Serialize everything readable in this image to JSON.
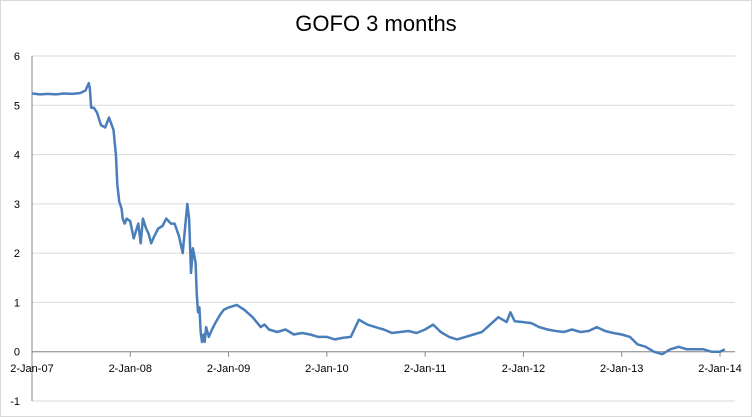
{
  "chart_data": {
    "type": "line",
    "title": "GOFO 3 months",
    "xlabel": "",
    "ylabel": "",
    "ylim": [
      -1,
      6
    ],
    "y_ticks": [
      "-1",
      "0",
      "1",
      "2",
      "3",
      "4",
      "5",
      "6"
    ],
    "x_ticks": [
      "2-Jan-07",
      "2-Jan-08",
      "2-Jan-09",
      "2-Jan-10",
      "2-Jan-11",
      "2-Jan-12",
      "2-Jan-13",
      "2-Jan-14"
    ],
    "grid": "horizontal",
    "legend": "none",
    "series_color": "#4a7ebb",
    "series": [
      {
        "x": [
          "2007-01-02",
          "2007-02-01",
          "2007-03-01",
          "2007-04-01",
          "2007-05-01",
          "2007-06-01",
          "2007-07-01",
          "2007-07-20",
          "2007-08-01",
          "2007-08-05",
          "2007-08-10",
          "2007-08-20",
          "2007-09-01",
          "2007-09-15",
          "2007-10-01",
          "2007-10-15",
          "2007-11-01",
          "2007-11-10",
          "2007-11-15",
          "2007-11-22",
          "2007-12-01",
          "2007-12-05",
          "2007-12-12",
          "2007-12-20",
          "2008-01-02",
          "2008-01-15",
          "2008-02-01",
          "2008-02-10",
          "2008-02-18",
          "2008-03-01",
          "2008-03-10",
          "2008-03-20",
          "2008-04-01",
          "2008-04-15",
          "2008-05-01",
          "2008-05-15",
          "2008-06-01",
          "2008-06-15",
          "2008-07-01",
          "2008-07-15",
          "2008-08-01",
          "2008-08-08",
          "2008-08-15",
          "2008-08-22",
          "2008-09-01",
          "2008-09-05",
          "2008-09-10",
          "2008-09-15",
          "2008-09-20",
          "2008-09-25",
          "2008-10-01",
          "2008-10-05",
          "2008-10-10",
          "2008-10-20",
          "2008-11-01",
          "2008-11-15",
          "2008-12-01",
          "2008-12-15",
          "2009-01-02",
          "2009-02-01",
          "2009-03-01",
          "2009-04-01",
          "2009-05-01",
          "2009-05-15",
          "2009-06-01",
          "2009-07-01",
          "2009-08-01",
          "2009-09-01",
          "2009-10-01",
          "2009-11-01",
          "2009-12-01",
          "2010-01-02",
          "2010-02-01",
          "2010-03-01",
          "2010-04-01",
          "2010-05-01",
          "2010-06-01",
          "2010-07-01",
          "2010-08-01",
          "2010-09-01",
          "2010-10-01",
          "2010-11-01",
          "2010-12-01",
          "2011-01-02",
          "2011-02-01",
          "2011-03-01",
          "2011-04-01",
          "2011-05-01",
          "2011-06-01",
          "2011-07-01",
          "2011-08-01",
          "2011-09-01",
          "2011-10-01",
          "2011-11-01",
          "2011-11-15",
          "2011-12-01",
          "2012-01-02",
          "2012-02-01",
          "2012-03-01",
          "2012-04-01",
          "2012-05-01",
          "2012-06-01",
          "2012-07-01",
          "2012-08-01",
          "2012-09-01",
          "2012-10-01",
          "2012-11-01",
          "2012-12-01",
          "2013-01-02",
          "2013-02-01",
          "2013-03-01",
          "2013-04-01",
          "2013-05-01",
          "2013-06-01",
          "2013-07-01",
          "2013-08-01",
          "2013-09-01",
          "2013-10-01",
          "2013-11-01",
          "2013-12-01",
          "2014-01-02",
          "2014-01-20"
        ],
        "values": [
          5.24,
          5.22,
          5.23,
          5.22,
          5.24,
          5.23,
          5.25,
          5.3,
          5.45,
          5.35,
          4.95,
          4.95,
          4.85,
          4.6,
          4.55,
          4.75,
          4.5,
          4.0,
          3.4,
          3.05,
          2.9,
          2.7,
          2.6,
          2.7,
          2.65,
          2.3,
          2.6,
          2.2,
          2.7,
          2.5,
          2.4,
          2.2,
          2.35,
          2.5,
          2.55,
          2.7,
          2.6,
          2.6,
          2.35,
          2.0,
          3.0,
          2.7,
          1.6,
          2.1,
          1.8,
          1.2,
          0.8,
          0.9,
          0.4,
          0.2,
          0.35,
          0.2,
          0.5,
          0.3,
          0.45,
          0.6,
          0.75,
          0.85,
          0.9,
          0.95,
          0.85,
          0.7,
          0.5,
          0.55,
          0.45,
          0.4,
          0.45,
          0.35,
          0.38,
          0.35,
          0.3,
          0.3,
          0.25,
          0.28,
          0.3,
          0.65,
          0.55,
          0.5,
          0.45,
          0.38,
          0.4,
          0.42,
          0.38,
          0.45,
          0.55,
          0.4,
          0.3,
          0.25,
          0.3,
          0.35,
          0.4,
          0.55,
          0.7,
          0.6,
          0.8,
          0.62,
          0.6,
          0.58,
          0.5,
          0.45,
          0.42,
          0.4,
          0.45,
          0.4,
          0.42,
          0.5,
          0.42,
          0.38,
          0.35,
          0.3,
          0.15,
          0.1,
          0.0,
          -0.05,
          0.05,
          0.1,
          0.05,
          0.05,
          0.05,
          0.0,
          0.0,
          0.05
        ]
      }
    ]
  }
}
